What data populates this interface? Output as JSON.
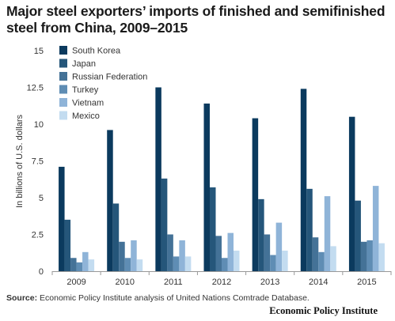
{
  "title": "Major steel exporters’ imports of finished and semifinished steel from China, 2009–2015",
  "source_label": "Source:",
  "source_text": "Economic Policy Institute analysis of United Nations Comtrade Database.",
  "brand": "Economic Policy Institute",
  "chart_data": {
    "type": "bar",
    "title": "Major steel exporters’ imports of finished and semifinished steel from China, 2009–2015",
    "xlabel": "",
    "ylabel": "In billions of U.S. dollars",
    "ylim": [
      0,
      15
    ],
    "yticks": [
      0,
      2.5,
      5,
      7.5,
      10,
      12.5,
      15
    ],
    "ytick_labels": [
      "0",
      "2.5",
      "5",
      "7.5",
      "10",
      "12.5",
      "15"
    ],
    "grid": false,
    "legend_position": "top-left",
    "categories": [
      "2009",
      "2010",
      "2011",
      "2012",
      "2013",
      "2014",
      "2015"
    ],
    "series": [
      {
        "name": "South Korea",
        "color": "#0b3a5e",
        "values": [
          7.1,
          9.6,
          12.5,
          11.4,
          10.4,
          12.4,
          10.5
        ]
      },
      {
        "name": "Japan",
        "color": "#25567a",
        "values": [
          3.5,
          4.6,
          6.3,
          5.7,
          4.9,
          5.6,
          4.8
        ]
      },
      {
        "name": "Russian Federation",
        "color": "#447297",
        "values": [
          0.9,
          2.0,
          2.5,
          2.4,
          2.5,
          2.3,
          2.0
        ]
      },
      {
        "name": "Turkey",
        "color": "#5f8db4",
        "values": [
          0.6,
          0.9,
          1.0,
          0.9,
          1.1,
          1.3,
          2.1
        ]
      },
      {
        "name": "Vietnam",
        "color": "#8fb4d8",
        "values": [
          1.3,
          2.1,
          2.1,
          2.6,
          3.3,
          5.1,
          5.8
        ]
      },
      {
        "name": "Mexico",
        "color": "#c3dcf0",
        "values": [
          0.8,
          0.8,
          1.0,
          1.4,
          1.4,
          1.7,
          1.9
        ]
      }
    ]
  }
}
